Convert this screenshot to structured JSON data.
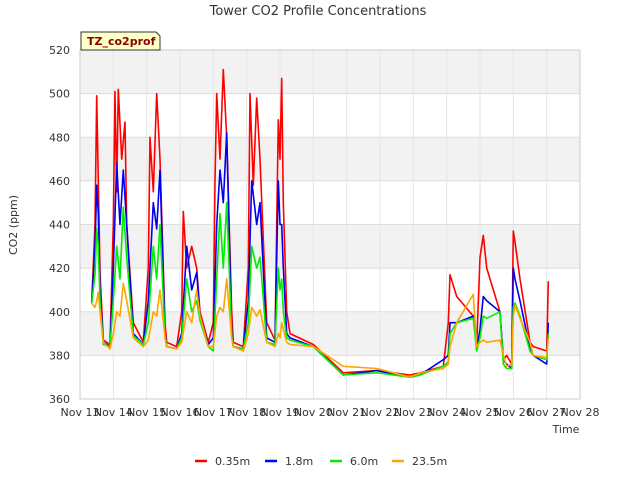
{
  "chart_data": {
    "type": "line",
    "title": "Tower CO2 Profile Concentrations",
    "xlabel": "Time",
    "ylabel": "CO2 (ppm)",
    "site_label": "TZ_co2prof",
    "xlim": [
      13,
      28
    ],
    "ylim": [
      360,
      520
    ],
    "x_ticks": [
      13,
      14,
      15,
      16,
      17,
      18,
      19,
      20,
      21,
      22,
      23,
      24,
      25,
      26,
      27,
      28
    ],
    "x_tick_labels": [
      "Nov 13",
      "Nov 14",
      "Nov 15",
      "Nov 16",
      "Nov 17",
      "Nov 18",
      "Nov 19",
      "Nov 20",
      "Nov 21",
      "Nov 22",
      "Nov 23",
      "Nov 24",
      "Nov 25",
      "Nov 26",
      "Nov 27",
      "Nov 28"
    ],
    "y_ticks": [
      360,
      380,
      400,
      420,
      440,
      460,
      480,
      500,
      520
    ],
    "y_tick_labels": [
      "360",
      "380",
      "400",
      "420",
      "440",
      "460",
      "480",
      "500",
      "520"
    ],
    "grid": true,
    "legend": "bottom",
    "series": [
      {
        "name": "0.35m",
        "color": "#ff0000",
        "x": [
          13.35,
          13.45,
          13.5,
          13.55,
          13.6,
          13.7,
          13.9,
          14.0,
          14.05,
          14.1,
          14.15,
          14.25,
          14.35,
          14.4,
          14.6,
          14.9,
          15.05,
          15.1,
          15.2,
          15.3,
          15.4,
          15.55,
          15.6,
          15.9,
          16.05,
          16.1,
          16.2,
          16.35,
          16.5,
          16.6,
          16.85,
          17.0,
          17.05,
          17.1,
          17.2,
          17.3,
          17.4,
          17.55,
          17.6,
          17.9,
          18.05,
          18.1,
          18.2,
          18.3,
          18.4,
          18.6,
          18.85,
          18.95,
          19.0,
          19.05,
          19.1,
          19.2,
          19.3,
          20.0,
          20.9,
          21.9,
          22.9,
          23.2,
          23.9,
          24.05,
          24.1,
          24.3,
          24.8,
          24.9,
          25.0,
          25.1,
          25.2,
          25.6,
          25.7,
          25.8,
          25.95,
          26.0,
          26.05,
          26.2,
          26.5,
          26.6,
          27.0,
          27.05
        ],
        "values": [
          404,
          440,
          499,
          460,
          418,
          387,
          385,
          440,
          501,
          455,
          502,
          470,
          487,
          440,
          395,
          386,
          420,
          480,
          455,
          500,
          470,
          395,
          386,
          384,
          400,
          446,
          420,
          430,
          420,
          400,
          386,
          395,
          460,
          500,
          470,
          511,
          480,
          400,
          386,
          384,
          420,
          500,
          458,
          498,
          470,
          395,
          387,
          488,
          470,
          507,
          450,
          400,
          390,
          385,
          372,
          373,
          371,
          372,
          375,
          395,
          417,
          407,
          398,
          385,
          425,
          435,
          420,
          400,
          378,
          380,
          376,
          437,
          432,
          415,
          386,
          384,
          382,
          414
        ]
      },
      {
        "name": "1.8m",
        "color": "#0000ee",
        "x": [
          13.35,
          13.45,
          13.5,
          13.55,
          13.6,
          13.7,
          13.9,
          14.0,
          14.1,
          14.2,
          14.3,
          14.4,
          14.6,
          14.9,
          15.05,
          15.2,
          15.3,
          15.4,
          15.55,
          15.6,
          15.9,
          16.05,
          16.2,
          16.35,
          16.5,
          16.6,
          16.85,
          17.0,
          17.1,
          17.2,
          17.3,
          17.4,
          17.55,
          17.6,
          17.9,
          18.05,
          18.15,
          18.3,
          18.4,
          18.6,
          18.85,
          18.95,
          19.0,
          19.05,
          19.1,
          19.2,
          19.3,
          20.0,
          20.9,
          21.9,
          22.9,
          23.2,
          23.9,
          24.05,
          24.1,
          24.3,
          24.8,
          24.9,
          25.0,
          25.1,
          25.2,
          25.6,
          25.7,
          25.8,
          25.95,
          26.0,
          26.05,
          26.2,
          26.5,
          26.6,
          27.0,
          27.05
        ],
        "values": [
          404,
          430,
          458,
          445,
          410,
          386,
          384,
          420,
          468,
          440,
          465,
          440,
          390,
          385,
          405,
          450,
          438,
          465,
          390,
          384,
          383,
          390,
          430,
          410,
          418,
          398,
          385,
          388,
          440,
          465,
          450,
          482,
          390,
          384,
          383,
          405,
          460,
          440,
          450,
          388,
          386,
          460,
          440,
          440,
          420,
          390,
          388,
          384,
          371,
          373,
          370,
          371,
          378,
          380,
          395,
          395,
          398,
          383,
          392,
          407,
          405,
          400,
          378,
          376,
          374,
          420,
          415,
          405,
          383,
          380,
          376,
          395
        ]
      },
      {
        "name": "6.0m",
        "color": "#00ee00",
        "x": [
          13.35,
          13.45,
          13.5,
          13.55,
          13.6,
          13.7,
          13.9,
          14.0,
          14.1,
          14.2,
          14.3,
          14.4,
          14.6,
          14.9,
          15.05,
          15.2,
          15.3,
          15.4,
          15.55,
          15.6,
          15.9,
          16.05,
          16.2,
          16.35,
          16.5,
          16.6,
          16.85,
          17.0,
          17.1,
          17.2,
          17.3,
          17.4,
          17.55,
          17.6,
          17.9,
          18.05,
          18.15,
          18.3,
          18.4,
          18.6,
          18.85,
          18.95,
          19.0,
          19.05,
          19.1,
          19.2,
          19.3,
          20.0,
          20.9,
          21.9,
          22.9,
          23.2,
          23.9,
          24.05,
          24.1,
          24.3,
          24.8,
          24.9,
          25.0,
          25.1,
          25.2,
          25.6,
          25.7,
          25.8,
          25.95,
          26.0,
          26.05,
          26.2,
          26.5,
          26.6,
          27.0,
          27.05
        ],
        "values": [
          404,
          417,
          438,
          430,
          405,
          385,
          384,
          405,
          430,
          415,
          448,
          425,
          389,
          385,
          395,
          430,
          415,
          440,
          389,
          384,
          383,
          388,
          415,
          400,
          405,
          396,
          384,
          382,
          415,
          445,
          420,
          450,
          389,
          384,
          383,
          395,
          430,
          420,
          425,
          386,
          385,
          420,
          410,
          415,
          400,
          388,
          387,
          384,
          371,
          372,
          370,
          371,
          375,
          377,
          390,
          395,
          397,
          382,
          388,
          398,
          397,
          400,
          376,
          374,
          374,
          402,
          404,
          398,
          382,
          380,
          378,
          390
        ]
      },
      {
        "name": "23.5m",
        "color": "#ffa500",
        "x": [
          13.35,
          13.45,
          13.5,
          13.55,
          13.6,
          13.7,
          13.9,
          14.0,
          14.1,
          14.2,
          14.3,
          14.4,
          14.6,
          14.9,
          15.05,
          15.2,
          15.3,
          15.4,
          15.55,
          15.6,
          15.9,
          16.05,
          16.2,
          16.35,
          16.5,
          16.6,
          16.85,
          17.0,
          17.1,
          17.2,
          17.3,
          17.4,
          17.55,
          17.6,
          17.9,
          18.05,
          18.15,
          18.3,
          18.4,
          18.6,
          18.85,
          18.95,
          19.0,
          19.05,
          19.1,
          19.2,
          19.3,
          20.0,
          20.9,
          21.9,
          22.9,
          23.2,
          23.9,
          24.05,
          24.1,
          24.3,
          24.8,
          24.9,
          25.0,
          25.1,
          25.2,
          25.6,
          25.7,
          25.8,
          25.95,
          26.0,
          26.05,
          26.2,
          26.5,
          26.6,
          27.0,
          27.05
        ],
        "values": [
          404,
          402,
          405,
          409,
          400,
          386,
          383,
          390,
          400,
          398,
          413,
          405,
          388,
          384,
          387,
          400,
          398,
          410,
          388,
          384,
          383,
          386,
          400,
          395,
          410,
          398,
          384,
          384,
          398,
          402,
          400,
          415,
          388,
          384,
          382,
          390,
          402,
          398,
          401,
          386,
          384,
          390,
          388,
          395,
          392,
          386,
          385,
          384,
          375,
          374,
          370,
          372,
          374,
          376,
          384,
          395,
          408,
          384,
          386,
          387,
          386,
          387,
          380,
          375,
          376,
          398,
          403,
          397,
          386,
          380,
          379,
          388
        ]
      }
    ]
  }
}
